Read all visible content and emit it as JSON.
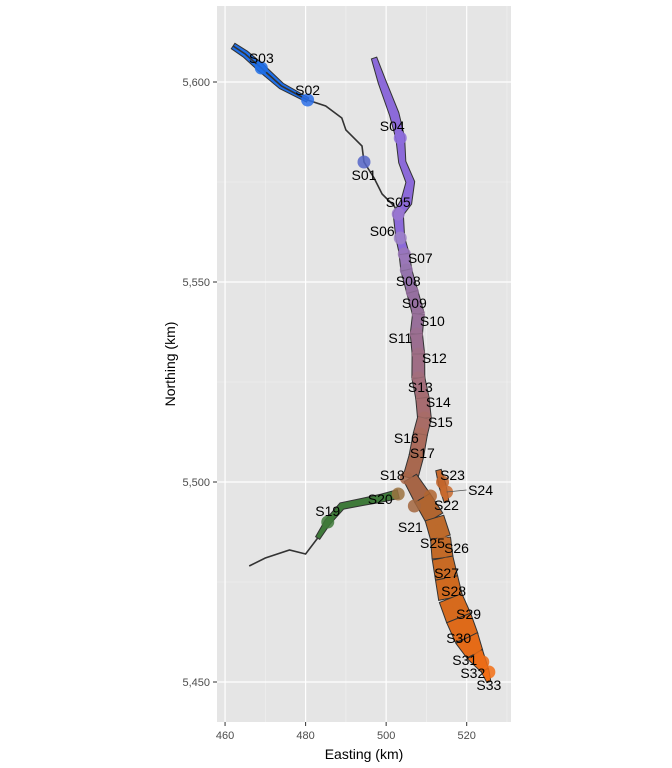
{
  "chart_data": {
    "type": "scatter",
    "title": "",
    "xlabel": "Easting (km)",
    "ylabel": "Northing (km)",
    "xlim": [
      458,
      531
    ],
    "ylim": [
      5440,
      5619
    ],
    "x_ticks": [
      460,
      480,
      500,
      520
    ],
    "x_tick_labels": [
      "460",
      "480",
      "500",
      "520"
    ],
    "y_ticks": [
      5450,
      5500,
      5550,
      5600
    ],
    "y_tick_labels": [
      "5,450",
      "5,500",
      "5,550",
      "5,600"
    ],
    "grid": true,
    "legend": "none",
    "points": [
      {
        "name": "S01",
        "x": 494.5,
        "y": 5580,
        "color": "#5565c8"
      },
      {
        "name": "S02",
        "x": 480.5,
        "y": 5595.5,
        "color": "#2b6ee8"
      },
      {
        "name": "S03",
        "x": 469,
        "y": 5603.5,
        "color": "#1f6fe8"
      },
      {
        "name": "S04",
        "x": 503.5,
        "y": 5586,
        "color": "#8d6cdc"
      },
      {
        "name": "S05",
        "x": 503,
        "y": 5567,
        "color": "#9a78cf"
      },
      {
        "name": "S06",
        "x": 503.5,
        "y": 5561,
        "color": "#9e82c8"
      },
      {
        "name": "S07",
        "x": 504.5,
        "y": 5557,
        "color": "#9a77b8"
      },
      {
        "name": "S08",
        "x": 505,
        "y": 5553,
        "color": "#9574ad"
      },
      {
        "name": "S09",
        "x": 506.5,
        "y": 5547.5,
        "color": "#9670a0"
      },
      {
        "name": "S10",
        "x": 508,
        "y": 5542,
        "color": "#98709a"
      },
      {
        "name": "S11",
        "x": 507.5,
        "y": 5537,
        "color": "#9b6e90"
      },
      {
        "name": "S12",
        "x": 508,
        "y": 5532,
        "color": "#9f6e85"
      },
      {
        "name": "S13",
        "x": 508,
        "y": 5526,
        "color": "#a36e7b"
      },
      {
        "name": "S14",
        "x": 509,
        "y": 5521,
        "color": "#a66c70"
      },
      {
        "name": "S15",
        "x": 509.5,
        "y": 5516,
        "color": "#a86c66"
      },
      {
        "name": "S16",
        "x": 508.5,
        "y": 5512,
        "color": "#aa6b5c"
      },
      {
        "name": "S17",
        "x": 507.5,
        "y": 5506.5,
        "color": "#a8684f"
      },
      {
        "name": "S18",
        "x": 505,
        "y": 5501,
        "color": "#a66546"
      },
      {
        "name": "S19",
        "x": 485.5,
        "y": 5490,
        "color": "#3f7a3a"
      },
      {
        "name": "S20",
        "x": 503,
        "y": 5497,
        "color": "#9c7341"
      },
      {
        "name": "S21",
        "x": 507,
        "y": 5494,
        "color": "#a3663e"
      },
      {
        "name": "S22",
        "x": 511,
        "y": 5496.5,
        "color": "#b06530"
      },
      {
        "name": "S23",
        "x": 514,
        "y": 5500,
        "color": "#c2652c"
      },
      {
        "name": "S24",
        "x": 515,
        "y": 5497.5,
        "color": "#c86a2e"
      },
      {
        "name": "S25",
        "x": 513.5,
        "y": 5488,
        "color": "#bc6a2c"
      },
      {
        "name": "S26",
        "x": 514,
        "y": 5485,
        "color": "#c26a28"
      },
      {
        "name": "S27",
        "x": 515,
        "y": 5479.5,
        "color": "#c86a24"
      },
      {
        "name": "S28",
        "x": 516,
        "y": 5475,
        "color": "#cf6a20"
      },
      {
        "name": "S29",
        "x": 518,
        "y": 5469.5,
        "color": "#d66a1d"
      },
      {
        "name": "S30",
        "x": 519.5,
        "y": 5464,
        "color": "#de6a1a"
      },
      {
        "name": "S31",
        "x": 522,
        "y": 5458.5,
        "color": "#e56b18"
      },
      {
        "name": "S32",
        "x": 524,
        "y": 5455,
        "color": "#ec6c16"
      },
      {
        "name": "S33",
        "x": 525.5,
        "y": 5452.5,
        "color": "#f36f14"
      }
    ]
  },
  "colors": {
    "panel_background": "#e5e5e5",
    "grid_line": "#ffffff",
    "outline": "#333333"
  }
}
